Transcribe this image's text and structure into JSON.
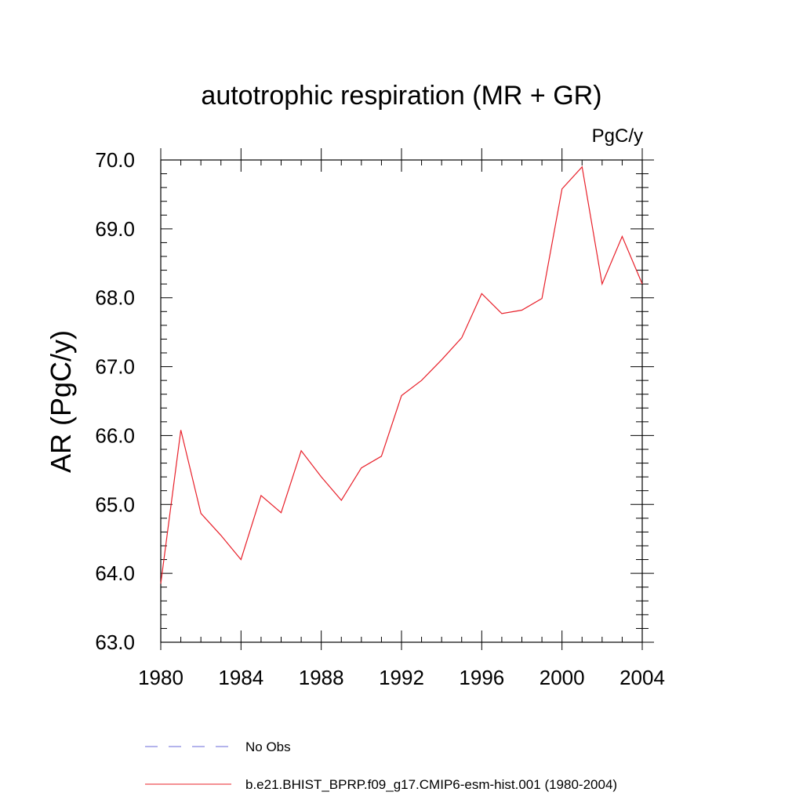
{
  "chart_data": {
    "type": "line",
    "title": "autotrophic respiration (MR + GR)",
    "units": "PgC/y",
    "xlabel": "",
    "ylabel": "AR  (PgC/y)",
    "xlim": [
      1980,
      2004
    ],
    "ylim": [
      63.0,
      70.0
    ],
    "x_ticks": [
      1980,
      1984,
      1988,
      1992,
      1996,
      2000,
      2004
    ],
    "x_tick_labels": [
      "1980",
      "1984",
      "1988",
      "1992",
      "1996",
      "2000",
      "2004"
    ],
    "y_ticks": [
      63,
      64,
      65,
      66,
      67,
      68,
      69,
      70
    ],
    "y_tick_labels": [
      "63.0",
      "64.0",
      "65.0",
      "66.0",
      "67.0",
      "68.0",
      "69.0",
      "70.0"
    ],
    "grid": false,
    "legend_position": "bottom",
    "series": [
      {
        "name": "b.e21.BHIST_BPRP.f09_g17.CMIP6-esm-hist.001 (1980-2004)",
        "color": "#e8202a",
        "style": "solid",
        "x": [
          1980,
          1981,
          1982,
          1983,
          1984,
          1985,
          1986,
          1987,
          1988,
          1989,
          1990,
          1991,
          1992,
          1993,
          1994,
          1995,
          1996,
          1997,
          1998,
          1999,
          2000,
          2001,
          2002,
          2003,
          2004
        ],
        "values": [
          63.85,
          66.08,
          64.87,
          64.55,
          64.2,
          65.13,
          64.88,
          65.78,
          65.4,
          65.06,
          65.53,
          65.7,
          66.58,
          66.8,
          67.1,
          67.42,
          68.06,
          67.77,
          67.82,
          67.99,
          69.58,
          69.9,
          68.2,
          68.89,
          68.2
        ]
      }
    ],
    "legend": [
      {
        "label": "No Obs",
        "color": "#6a6ad8",
        "style": "dashed"
      },
      {
        "label": "b.e21.BHIST_BPRP.f09_g17.CMIP6-esm-hist.001 (1980-2004)",
        "color": "#e8202a",
        "style": "solid"
      }
    ]
  }
}
